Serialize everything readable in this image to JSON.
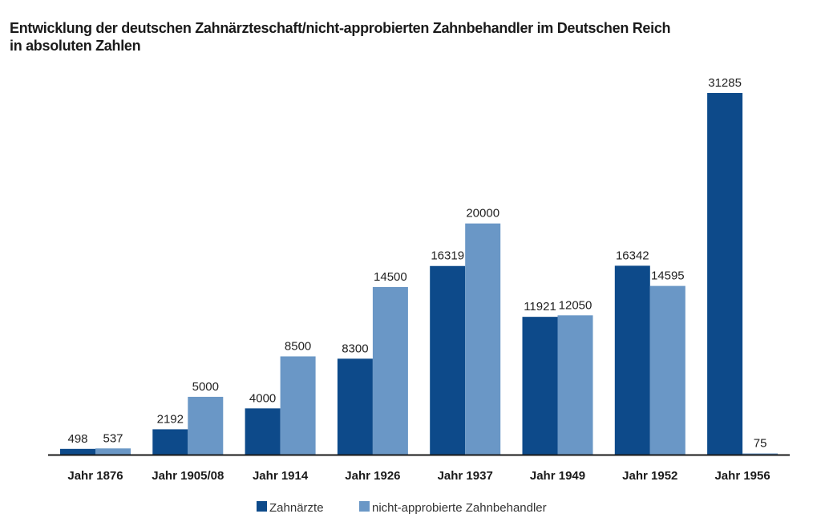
{
  "chart_data": {
    "type": "bar",
    "title": "Entwicklung der deutschen Zahnärzteschaft/nicht-approbierten Zahnbehandler im Deutschen Reich",
    "subtitle": "in absoluten Zahlen",
    "xlabel": "",
    "ylabel": "",
    "ylim": [
      0,
      31285
    ],
    "grid": false,
    "legend_position": "bottom-center",
    "categories": [
      "Jahr 1876",
      "Jahr 1905/08",
      "Jahr 1914",
      "Jahr 1926",
      "Jahr 1937",
      "Jahr 1949",
      "Jahr 1952",
      "Jahr 1956"
    ],
    "series": [
      {
        "name": "Zahnärzte",
        "color": "#0d4a8a",
        "values": [
          498,
          2192,
          4000,
          8300,
          16319,
          11921,
          16342,
          31285
        ]
      },
      {
        "name": "nicht-approbierte Zahnbehandler",
        "color": "#6a97c6",
        "values": [
          537,
          5000,
          8500,
          14500,
          20000,
          12050,
          14595,
          75
        ]
      }
    ]
  }
}
